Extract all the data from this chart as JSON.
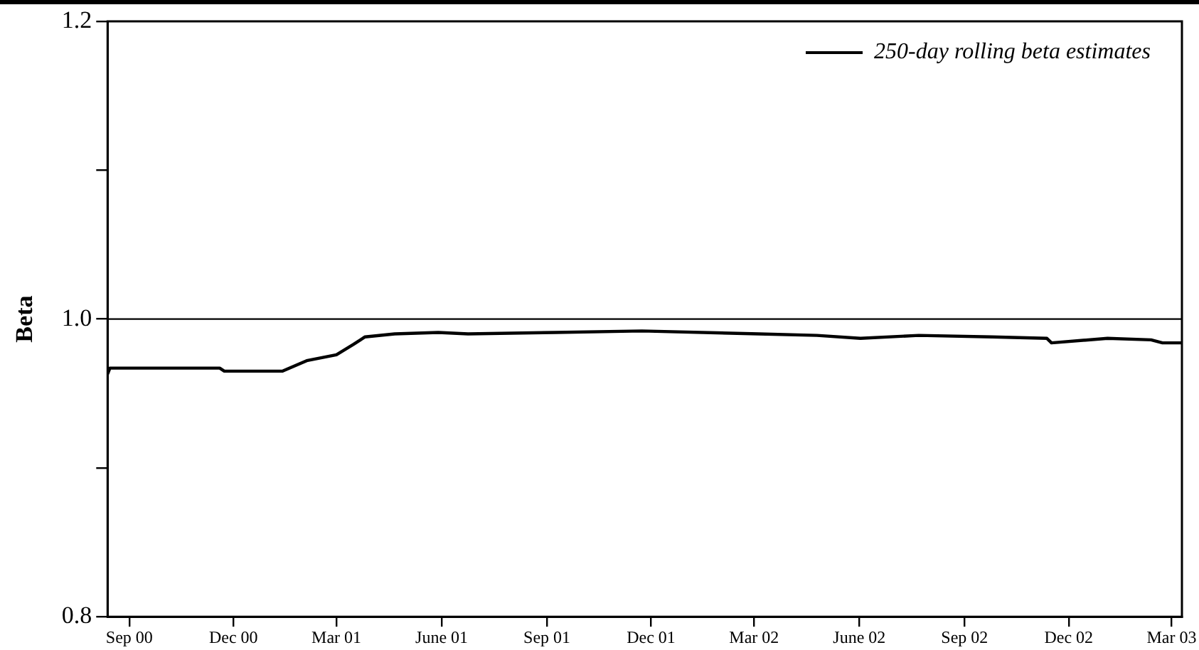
{
  "chart_data": {
    "type": "line",
    "ylabel": "Beta",
    "legend": "top right",
    "grid": false,
    "marker": "none",
    "line_style": "solid",
    "xlim": [
      "2000-08-13",
      "2003-03-10"
    ],
    "xticks": [
      {
        "value": "2000-09-01",
        "label": "Sep 00"
      },
      {
        "value": "2000-12-01",
        "label": "Dec 00"
      },
      {
        "value": "2001-03-01",
        "label": "Mar 01"
      },
      {
        "value": "2001-06-01",
        "label": "June 01"
      },
      {
        "value": "2001-09-01",
        "label": "Sep 01"
      },
      {
        "value": "2001-12-01",
        "label": "Dec 01"
      },
      {
        "value": "2002-03-01",
        "label": "Mar 02"
      },
      {
        "value": "2002-06-01",
        "label": "June 02"
      },
      {
        "value": "2002-09-01",
        "label": "Sep 02"
      },
      {
        "value": "2002-12-01",
        "label": "Dec 02"
      },
      {
        "value": "2003-03-01",
        "label": "Mar 03"
      }
    ],
    "ylim": [
      0.8,
      1.2
    ],
    "yticks": [
      {
        "value": 0.8,
        "label": "0.8"
      },
      {
        "value": 0.9,
        "label": null
      },
      {
        "value": 1.0,
        "label": "1.0"
      },
      {
        "value": 1.1,
        "label": null
      },
      {
        "value": 1.2,
        "label": "1.2"
      }
    ],
    "ref_lines": [
      {
        "axis": "y",
        "value": 1.0,
        "color": "#000000"
      }
    ],
    "series": [
      {
        "name": "250-day rolling beta estimates",
        "color": "#000000",
        "x": [
          "2000-08-13",
          "2000-08-15",
          "2000-11-19",
          "2000-11-23",
          "2001-01-13",
          "2001-02-03",
          "2001-03-01",
          "2001-03-16",
          "2001-03-26",
          "2001-04-21",
          "2001-05-29",
          "2001-06-24",
          "2001-09-08",
          "2001-11-23",
          "2002-03-05",
          "2002-04-25",
          "2002-06-02",
          "2002-07-23",
          "2002-09-25",
          "2002-11-12",
          "2002-11-16",
          "2003-01-04",
          "2003-02-11",
          "2003-02-21",
          "2003-03-10"
        ],
        "values": [
          0.963,
          0.967,
          0.967,
          0.965,
          0.965,
          0.972,
          0.976,
          0.983,
          0.988,
          0.99,
          0.991,
          0.99,
          0.991,
          0.992,
          0.99,
          0.989,
          0.987,
          0.989,
          0.988,
          0.987,
          0.984,
          0.987,
          0.986,
          0.984,
          0.984
        ]
      }
    ]
  }
}
